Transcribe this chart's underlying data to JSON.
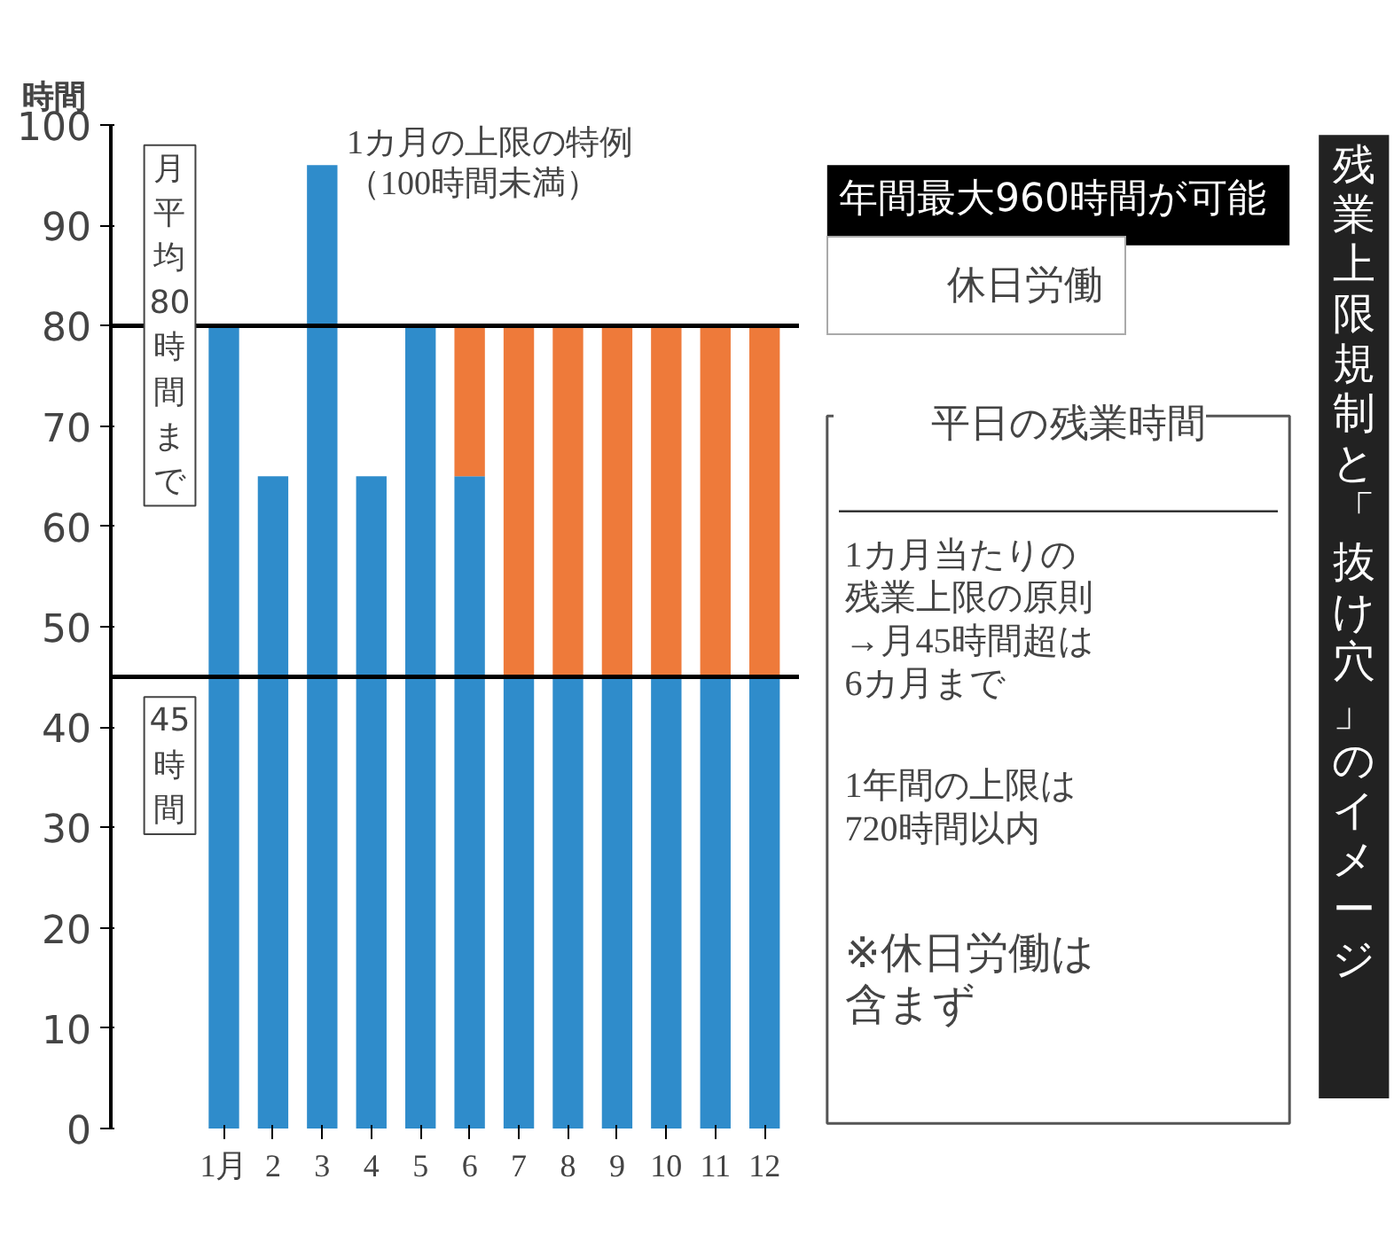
{
  "chart_data": {
    "type": "bar",
    "title": "残業上限規制と「抜け穴」のイメージ",
    "ylabel": "時間",
    "categories": [
      "1月",
      "2",
      "3",
      "4",
      "5",
      "6",
      "7",
      "8",
      "9",
      "10",
      "11",
      "12"
    ],
    "stacked": true,
    "legend": "right",
    "series": [
      {
        "name": "平日の残業時間",
        "color": "#2f8ccb",
        "values": [
          80,
          65,
          96,
          65,
          80,
          65,
          45,
          45,
          45,
          45,
          45,
          45
        ]
      },
      {
        "name": "休日労働",
        "color": "#ee7a3a",
        "values": [
          null,
          null,
          null,
          null,
          null,
          15,
          35,
          35,
          35,
          35,
          35,
          35
        ]
      }
    ],
    "ylim": [
      0,
      100
    ],
    "yticks": [
      0,
      10,
      20,
      30,
      40,
      50,
      60,
      70,
      80,
      90,
      100
    ],
    "ref_lines": [
      {
        "axis": "y",
        "value": 80,
        "label": "月平均80時間まで"
      },
      {
        "axis": "y",
        "value": 45,
        "label": "45時間"
      }
    ],
    "annotations": [
      {
        "text": "1カ月の上限の特例（100時間未満）",
        "x": "3",
        "y": 96
      },
      "年間最大960時間が可能",
      "1カ月当たりの残業上限の原則→月45時間超は6カ月まで",
      "1年間の上限は720時間以内",
      "※休日労働は含まず"
    ]
  }
}
